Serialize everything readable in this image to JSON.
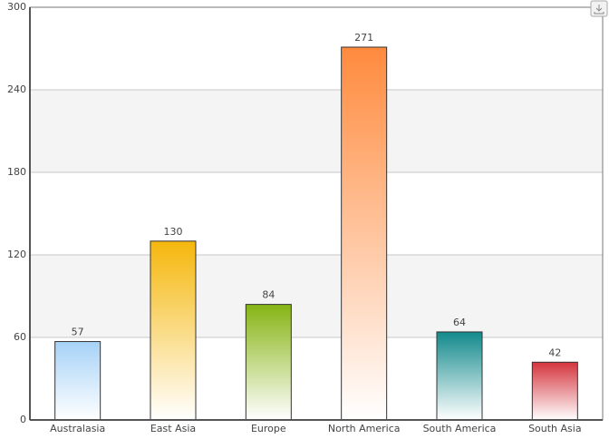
{
  "chart_data": {
    "type": "bar",
    "categories": [
      "Australasia",
      "East Asia",
      "Europe",
      "North America",
      "South America",
      "South Asia"
    ],
    "values": [
      57,
      130,
      84,
      271,
      64,
      42
    ],
    "colors": [
      "#a6d2f7",
      "#f5b70c",
      "#86b414",
      "#ff8a3d",
      "#12898b",
      "#d4343d"
    ],
    "ylim": [
      0,
      300
    ],
    "yticks": [
      0,
      60,
      120,
      180,
      240,
      300
    ],
    "grid": true
  }
}
